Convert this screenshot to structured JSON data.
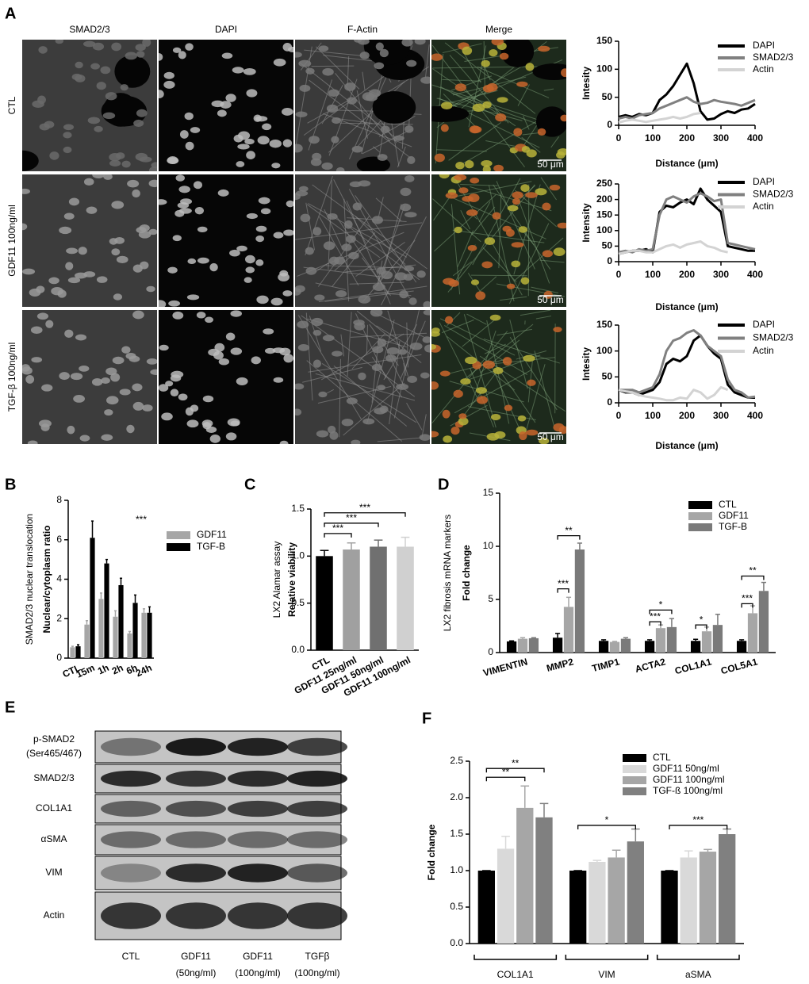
{
  "panel_labels": [
    "A",
    "B",
    "C",
    "D",
    "E",
    "F"
  ],
  "microscopy": {
    "columns": [
      "SMAD2/3",
      "DAPI",
      "F-Actin",
      "Merge"
    ],
    "rows": [
      "CTL",
      "GDF11 100ng/ml",
      "TGF-β 100ng/ml"
    ],
    "scale_bar": "50 μm"
  },
  "blot": {
    "rows": [
      [
        "p-SMAD2",
        "(Ser465/467)"
      ],
      [
        "SMAD2/3"
      ],
      [
        "COL1A1"
      ],
      [
        "αSMA"
      ],
      [
        "VIM"
      ],
      [
        "Actin"
      ]
    ],
    "columns": [
      [
        "CTL"
      ],
      [
        "GDF11",
        "(50ng/ml)"
      ],
      [
        "GDF11",
        "(100ng/ml)"
      ],
      [
        "TGFβ",
        "(100ng/ml)"
      ]
    ]
  },
  "chart_data": [
    {
      "type": "line",
      "ylabel": [
        "Intesity"
      ],
      "xlabel": "Distance (μm)",
      "x": [
        0,
        20,
        40,
        60,
        80,
        100,
        120,
        140,
        160,
        180,
        200,
        220,
        240,
        260,
        280,
        300,
        320,
        340,
        360,
        380,
        400
      ],
      "xlim": [
        0,
        400
      ],
      "xticks": [
        0,
        100,
        200,
        300,
        400
      ],
      "ylim": [
        0,
        150
      ],
      "yticks": [
        0,
        50,
        100,
        150
      ],
      "series": [
        {
          "name": "DAPI",
          "color": "#000000",
          "values": [
            15,
            18,
            15,
            20,
            18,
            22,
            45,
            55,
            70,
            90,
            110,
            75,
            25,
            10,
            12,
            20,
            25,
            22,
            28,
            30,
            38
          ]
        },
        {
          "name": "SMAD2/3",
          "color": "#808080",
          "values": [
            12,
            15,
            12,
            18,
            20,
            22,
            30,
            35,
            40,
            45,
            50,
            42,
            38,
            40,
            45,
            42,
            40,
            38,
            35,
            40,
            45
          ]
        },
        {
          "name": "Actin",
          "color": "#d3d3d3",
          "values": [
            5,
            8,
            10,
            8,
            6,
            8,
            10,
            12,
            15,
            12,
            15,
            20,
            22,
            null,
            null,
            null,
            null,
            null,
            null,
            null,
            null
          ]
        }
      ]
    },
    {
      "type": "line",
      "ylabel": [
        "Intensity"
      ],
      "xlabel": "Distance (μm)",
      "x": [
        0,
        20,
        40,
        60,
        80,
        100,
        120,
        140,
        160,
        180,
        200,
        220,
        240,
        260,
        280,
        300,
        320,
        340,
        360,
        380,
        400
      ],
      "xlim": [
        0,
        400
      ],
      "xticks": [
        0,
        100,
        200,
        300,
        400
      ],
      "ylim": [
        0,
        250
      ],
      "yticks": [
        0,
        50,
        100,
        150,
        200,
        250
      ],
      "series": [
        {
          "name": "DAPI",
          "color": "#000000",
          "values": [
            25,
            30,
            35,
            35,
            40,
            30,
            160,
            180,
            175,
            190,
            200,
            185,
            235,
            200,
            180,
            160,
            50,
            45,
            40,
            35,
            35
          ]
        },
        {
          "name": "SMAD2/3",
          "color": "#808080",
          "values": [
            30,
            35,
            30,
            40,
            35,
            40,
            150,
            200,
            210,
            200,
            190,
            210,
            220,
            210,
            195,
            200,
            60,
            55,
            50,
            45,
            40
          ]
        },
        {
          "name": "Actin",
          "color": "#d3d3d3",
          "values": [
            25,
            30,
            35,
            35,
            30,
            30,
            40,
            50,
            55,
            45,
            55,
            60,
            65,
            50,
            45,
            35,
            30,
            null,
            null,
            null,
            null
          ]
        }
      ]
    },
    {
      "type": "line",
      "ylabel": [
        "Intesity"
      ],
      "xlabel": "Distance (μm)",
      "x": [
        0,
        20,
        40,
        60,
        80,
        100,
        120,
        140,
        160,
        180,
        200,
        220,
        240,
        260,
        280,
        300,
        320,
        340,
        360,
        380,
        400
      ],
      "xlim": [
        0,
        400
      ],
      "xticks": [
        0,
        100,
        200,
        300,
        400
      ],
      "ylim": [
        0,
        150
      ],
      "yticks": [
        0,
        50,
        100,
        150
      ],
      "series": [
        {
          "name": "DAPI",
          "color": "#000000",
          "values": [
            25,
            20,
            20,
            15,
            20,
            25,
            40,
            75,
            85,
            80,
            90,
            120,
            130,
            110,
            95,
            85,
            35,
            20,
            15,
            10,
            10
          ]
        },
        {
          "name": "SMAD2/3",
          "color": "#808080",
          "values": [
            25,
            25,
            25,
            20,
            25,
            30,
            55,
            100,
            120,
            125,
            135,
            140,
            130,
            110,
            100,
            90,
            45,
            25,
            20,
            10,
            12
          ]
        },
        {
          "name": "Actin",
          "color": "#d3d3d3",
          "values": [
            25,
            22,
            20,
            15,
            12,
            10,
            8,
            5,
            5,
            10,
            8,
            25,
            20,
            8,
            15,
            30,
            25,
            null,
            null,
            null,
            null
          ]
        }
      ]
    },
    {
      "type": "bar",
      "ylabel": [
        "SMAD2/3 nuclear translocation",
        "Nuclear/cytoplasm ratio"
      ],
      "categories": [
        "CTL",
        "15m",
        "1h",
        "2h",
        "6h",
        "24h"
      ],
      "ylim": [
        0,
        8
      ],
      "yticks": [
        0,
        2,
        4,
        6,
        8
      ],
      "annotations": [
        "***"
      ],
      "series": [
        {
          "name": "GDF11",
          "color": "#a6a6a6",
          "values": [
            0.55,
            1.7,
            3.0,
            2.1,
            1.25,
            2.3
          ],
          "errors": [
            0.05,
            0.2,
            0.3,
            0.3,
            0.1,
            0.2
          ]
        },
        {
          "name": "TGF-B",
          "color": "#000000",
          "values": [
            0.6,
            6.1,
            4.8,
            3.7,
            2.8,
            2.3
          ],
          "errors": [
            0.08,
            0.85,
            0.2,
            0.35,
            0.4,
            0.3
          ]
        }
      ]
    },
    {
      "type": "bar",
      "ylabel": [
        "LX2 Alamar assay",
        "Relative viability"
      ],
      "categories": [
        "CTL",
        "GDF11 25ng/ml",
        "GDF11 50ng/ml",
        "GDF11 100ng/ml"
      ],
      "values": [
        1.0,
        1.07,
        1.1,
        1.1
      ],
      "errors": [
        0.06,
        0.07,
        0.07,
        0.1
      ],
      "colors": [
        "#000000",
        "#a0a0a0",
        "#707070",
        "#d0d0d0"
      ],
      "ylim": [
        0,
        1.5
      ],
      "yticks": [
        {
          "value": 0,
          "label": "0.0"
        },
        0.5,
        {
          "value": 1,
          "label": "1.0"
        },
        1.5
      ],
      "annotations": [
        "***",
        "***",
        "***"
      ]
    },
    {
      "type": "bar",
      "ylabel": [
        "LX2 fibrosis mRNA markers",
        "Fold change"
      ],
      "categories": [
        "VIMENTIN",
        "MMP2",
        "TIMP1",
        "ACTA2",
        "COL1A1",
        "COL5A1"
      ],
      "ylim": [
        0,
        15
      ],
      "yticks": [
        0,
        5,
        10,
        15
      ],
      "annotations": [
        "**",
        "***",
        "*",
        "***",
        "*",
        "**",
        "***"
      ],
      "series": [
        {
          "name": "CTL",
          "color": "#000000",
          "values": [
            1.05,
            1.4,
            1.1,
            1.1,
            1.1,
            1.1
          ],
          "errors": [
            0.05,
            0.4,
            0.1,
            0.1,
            0.15,
            0.1
          ]
        },
        {
          "name": "GDF11",
          "color": "#a6a6a6",
          "values": [
            1.3,
            4.3,
            1.0,
            2.3,
            2.0,
            3.7
          ],
          "errors": [
            0.1,
            0.9,
            0.05,
            0.3,
            0.4,
            0.7
          ]
        },
        {
          "name": "TGF-B",
          "color": "#7a7a7a",
          "values": [
            1.35,
            9.7,
            1.3,
            2.4,
            2.6,
            5.8
          ],
          "errors": [
            0.05,
            0.6,
            0.1,
            0.8,
            1.0,
            0.8
          ]
        }
      ]
    },
    {
      "type": "bar",
      "ylabel": [
        "Fold change"
      ],
      "categories": [
        "COL1A1",
        "VIM",
        "aSMA"
      ],
      "ylim": [
        0,
        2.5
      ],
      "yticks": [
        {
          "value": 0,
          "label": "0.0"
        },
        0.5,
        {
          "value": 1,
          "label": "1.0"
        },
        1.5,
        {
          "value": 2,
          "label": "2.0"
        },
        2.5
      ],
      "annotations": [
        "**",
        "**",
        "*",
        "***"
      ],
      "series": [
        {
          "name": "CTL",
          "color": "#000000",
          "values": [
            1,
            1,
            1
          ],
          "errors": [
            0,
            0,
            0
          ]
        },
        {
          "name": "GDF11 50ng/ml",
          "color": "#d9d9d9",
          "values": [
            1.3,
            1.12,
            1.18
          ],
          "errors": [
            0.17,
            0.02,
            0.09
          ]
        },
        {
          "name": "GDF11 100ng/ml",
          "color": "#a6a6a6",
          "values": [
            1.86,
            1.18,
            1.26
          ],
          "errors": [
            0.3,
            0.1,
            0.03
          ]
        },
        {
          "name": "TGF-ß 100ng/ml",
          "color": "#808080",
          "values": [
            1.73,
            1.4,
            1.5
          ],
          "errors": [
            0.19,
            0.17,
            0.07
          ]
        }
      ]
    }
  ]
}
